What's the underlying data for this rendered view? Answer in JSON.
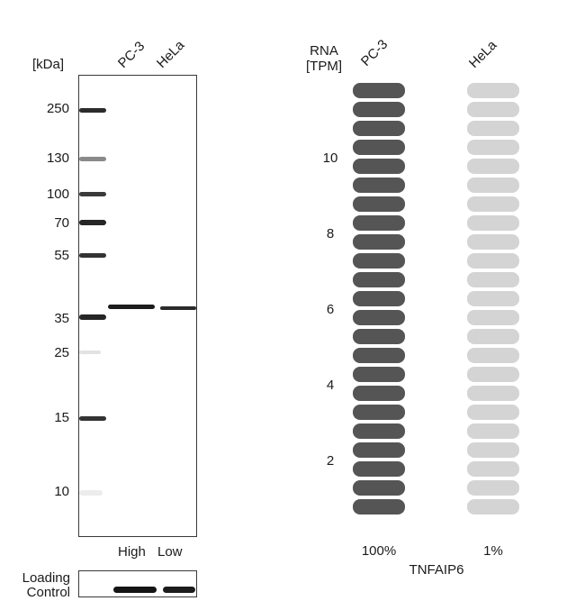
{
  "blot": {
    "unit_label": "[kDa]",
    "lanes": [
      "PC-3",
      "HeLa"
    ],
    "markers": [
      "250",
      "130",
      "100",
      "70",
      "55",
      "35",
      "25",
      "15",
      "10"
    ],
    "expression_labels": [
      "High",
      "Low"
    ],
    "loading_label_line1": "Loading",
    "loading_label_line2": "Control"
  },
  "rna": {
    "axis_label_line1": "RNA",
    "axis_label_line2": "[TPM]",
    "samples": [
      {
        "name": "PC-3",
        "percent_label": "100%",
        "filled_fraction": 1.0,
        "color": "#555555"
      },
      {
        "name": "HeLa",
        "percent_label": "1%",
        "filled_fraction": 0.0,
        "color": "#d4d4d4"
      }
    ],
    "ticks": [
      "10",
      "8",
      "6",
      "4",
      "2"
    ],
    "cells_per_column": 23,
    "gene": "TNFAIP6"
  },
  "colors": {
    "dark_cell": "#555555",
    "light_cell": "#d4d4d4",
    "band": "#1c1c1c"
  }
}
